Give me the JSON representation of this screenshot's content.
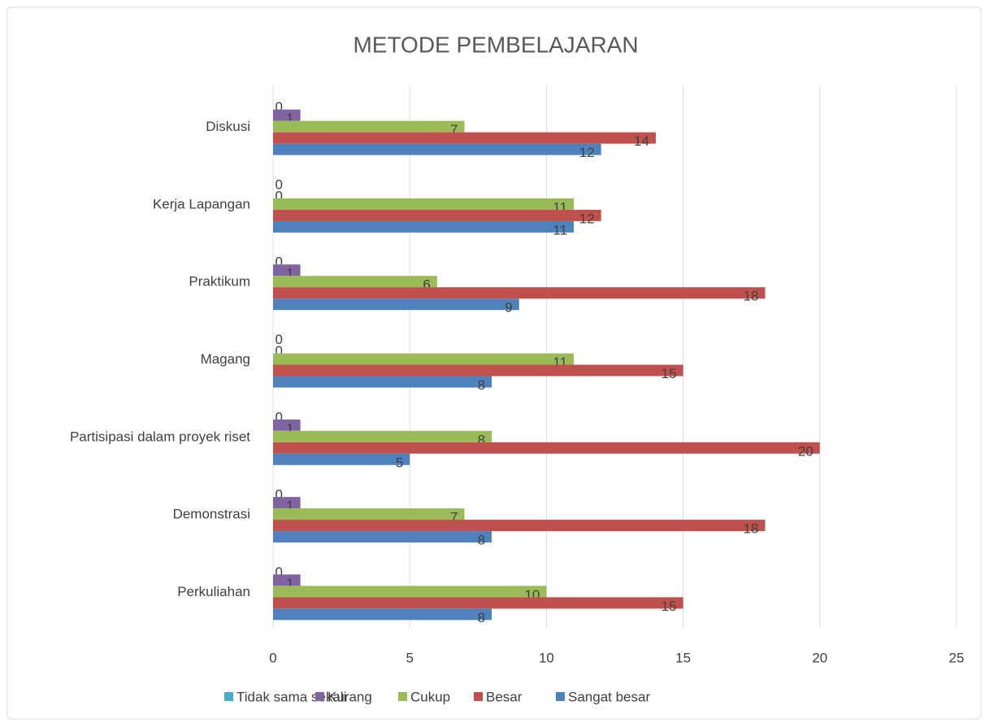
{
  "chart_data": {
    "type": "bar",
    "orientation": "horizontal",
    "title": "METODE PEMBELAJARAN",
    "categories": [
      "Diskusi",
      "Kerja Lapangan",
      "Praktikum",
      "Magang",
      "Partisipasi dalam proyek riset",
      "Demonstrasi",
      "Perkuliahan"
    ],
    "series": [
      {
        "name": "Tidak sama sekali",
        "color": "#4bacc6",
        "values": [
          0,
          0,
          0,
          0,
          0,
          0,
          0
        ]
      },
      {
        "name": "Kurang",
        "color": "#8064a2",
        "values": [
          1,
          0,
          1,
          0,
          1,
          1,
          1
        ]
      },
      {
        "name": "Cukup",
        "color": "#9bbb59",
        "values": [
          7,
          11,
          6,
          11,
          8,
          7,
          10
        ]
      },
      {
        "name": "Besar",
        "color": "#c0504d",
        "values": [
          14,
          12,
          18,
          15,
          20,
          18,
          15
        ]
      },
      {
        "name": "Sangat besar",
        "color": "#4f81bd",
        "values": [
          12,
          11,
          9,
          8,
          5,
          8,
          8
        ]
      }
    ],
    "xlim": [
      0,
      25
    ],
    "xticks": [
      0,
      5,
      10,
      15,
      20,
      25
    ],
    "grid": true,
    "legend": "bottom"
  }
}
